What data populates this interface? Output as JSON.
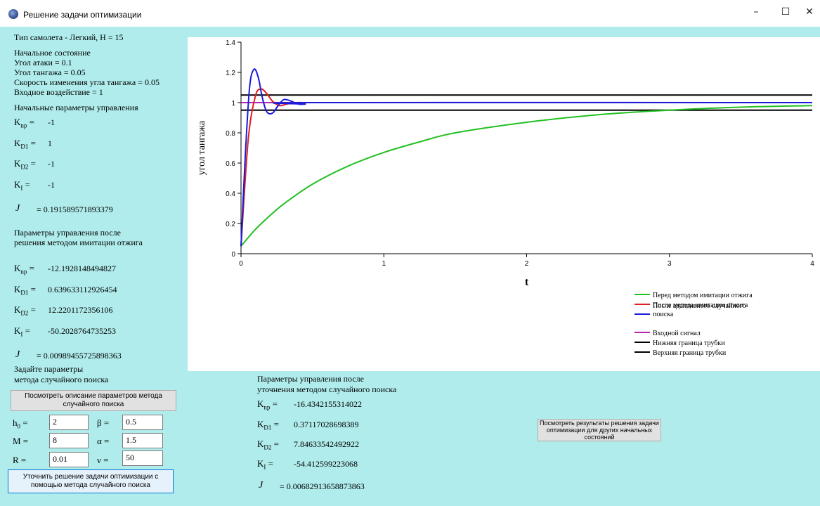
{
  "window": {
    "title": "Решение задачи оптимизации",
    "min_label": "–",
    "max_label": "☐",
    "close_label": "✕"
  },
  "left": {
    "plane_type": "Тип самолета - Легкий, H = 15",
    "initial_state_title": "Начальное состояние",
    "attack_angle": "Угол атаки = 0.1",
    "pitch_angle": "Угол тангажа = 0.05",
    "pitch_rate": "Скорость изменения угла тангажа = 0.05",
    "input_action": "Входное воздействие = 1",
    "initial_params_title": "Начальные параметры управления",
    "initial": {
      "knp": "-1",
      "kd1": "1",
      "kd2": "-1",
      "ki": "-1",
      "j": "= 0.191589571893379"
    },
    "annealing_title_1": "Параметры управления после",
    "annealing_title_2": "решения методом имитации отжига",
    "annealing": {
      "knp": "-12.1928148494827",
      "kd1": "0.639633112926454",
      "kd2": "12.2201172356106",
      "ki": "-50.2028764735253",
      "j": "= 0.00989455725898363"
    },
    "search_params_title_1": "Задайте параметры",
    "search_params_title_2": "метода случайного поиска",
    "view_desc_button": "Посмотреть описание параметров метода случайного поиска",
    "h0_value": "2",
    "beta_value": "0.5",
    "m_value": "8",
    "alpha_value": "1.5",
    "r_value": "0.01",
    "nu_value": "50",
    "refine_button": "Уточнить решение задачи оптимизации с помощью метода случайного поиска"
  },
  "symbols": {
    "k": "K",
    "np": "np",
    "d1": "D1",
    "d2": "D2",
    "i": "I",
    "eq": "=",
    "j": "J",
    "h": "h",
    "h_sub": "0",
    "beta": "β =",
    "m": "M =",
    "alpha": "α =",
    "r": "R =",
    "nu": "ν ="
  },
  "refined": {
    "title_1": "Параметры управления после",
    "title_2": "уточнения методом случайного поиска",
    "knp": "-16.4342155314022",
    "kd1": "0.37117028698389",
    "kd2": "7.84633542492922",
    "ki": "-54.412599223068",
    "j": "= 0.00682913658873863"
  },
  "other_results_button": "Посмотреть результаты решения задачи оптимизации для других начальных состояний",
  "chart_data": {
    "type": "line",
    "xlabel": "t",
    "ylabel": "угол тангажа",
    "xlim": [
      0,
      4
    ],
    "ylim": [
      0,
      1.4
    ],
    "x_ticks": [
      "0",
      "1",
      "2",
      "3",
      "4"
    ],
    "y_ticks": [
      "0",
      "0.2",
      "0.4",
      "0.6",
      "0.8",
      "1",
      "1.2",
      "1.4"
    ],
    "grid": false,
    "legend_position": "bottom-right",
    "series": [
      {
        "name": "Перед методом имитации отжига",
        "color": "#22c022",
        "x": [
          0,
          0.1,
          0.2,
          0.3,
          0.5,
          0.75,
          1.0,
          1.25,
          1.5,
          2.0,
          2.5,
          3.0,
          3.5,
          4.0
        ],
        "y": [
          0.05,
          0.16,
          0.25,
          0.33,
          0.46,
          0.58,
          0.67,
          0.74,
          0.8,
          0.87,
          0.92,
          0.95,
          0.97,
          0.98
        ]
      },
      {
        "name": "После метода имитации отжига",
        "color": "#e02020",
        "x": [
          0,
          0.05,
          0.1,
          0.14,
          0.18,
          0.22,
          0.27,
          0.32,
          0.38,
          0.45,
          0.55,
          4.0
        ],
        "y": [
          0.05,
          0.75,
          1.04,
          1.09,
          1.06,
          1.01,
          0.98,
          0.99,
          1.0,
          1.0,
          1.0,
          1.0
        ]
      },
      {
        "name": "После адаптивного случайного поиска",
        "color": "#1a1add",
        "x": [
          0,
          0.03,
          0.06,
          0.09,
          0.12,
          0.15,
          0.18,
          0.22,
          0.26,
          0.3,
          0.35,
          0.4,
          0.45,
          0.5,
          4.0
        ],
        "y": [
          0.05,
          0.65,
          1.1,
          1.22,
          1.17,
          1.03,
          0.94,
          0.93,
          0.98,
          1.02,
          1.01,
          0.99,
          0.99,
          1.0,
          1.0
        ]
      },
      {
        "name": "Входной сигнал",
        "color": "#b028b0",
        "x": [
          0,
          4.0
        ],
        "y": [
          1.0,
          1.0
        ]
      },
      {
        "name": "Нижняя граница трубки",
        "color": "#000000",
        "x": [
          0,
          4.0
        ],
        "y": [
          0.95,
          0.95
        ]
      },
      {
        "name": "Верхняя граница трубки",
        "color": "#000000",
        "x": [
          0,
          4.0
        ],
        "y": [
          1.05,
          1.05
        ]
      }
    ]
  }
}
